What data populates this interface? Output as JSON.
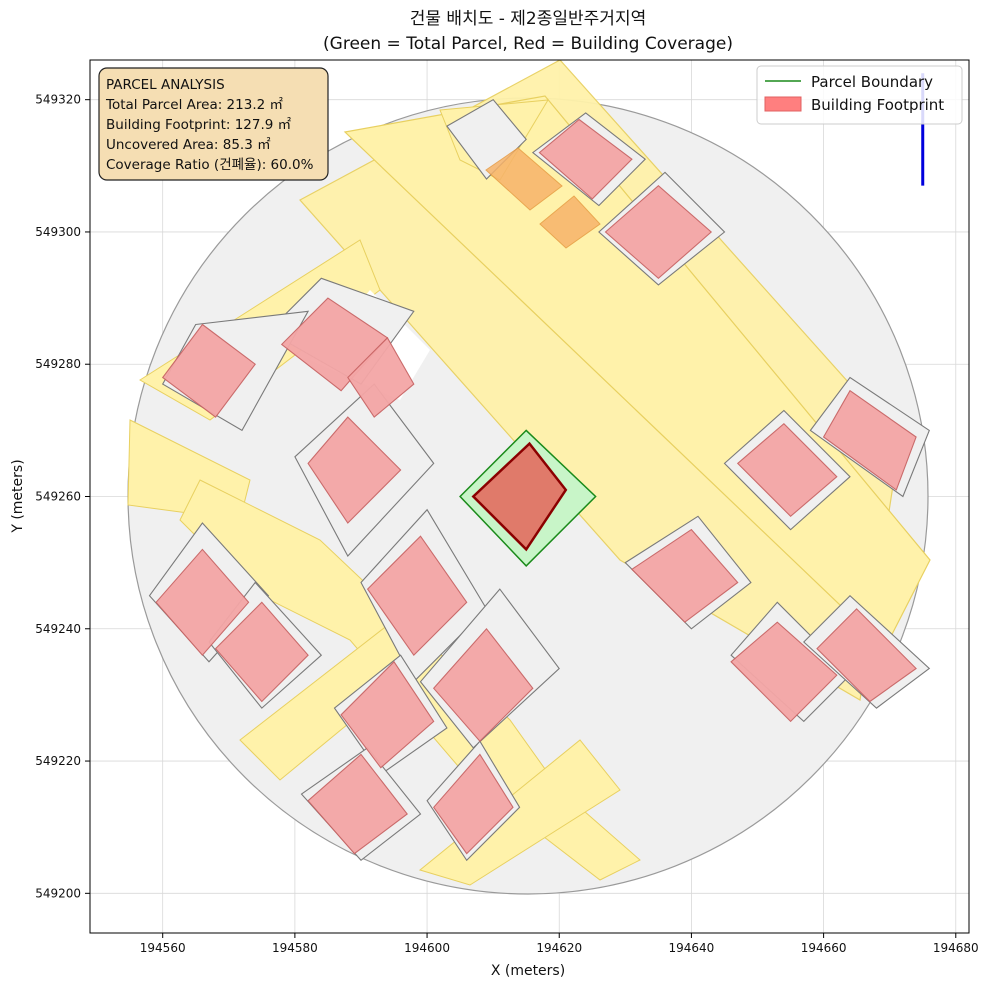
{
  "title": {
    "line1": "건물 배치도 - 제2종일반주거지역",
    "line2": "(Green = Total Parcel, Red = Building Coverage)"
  },
  "axes": {
    "xlabel": "X (meters)",
    "ylabel": "Y (meters)",
    "xlim": [
      194549,
      194682
    ],
    "ylim": [
      549194,
      549326
    ],
    "xticks": [
      194560,
      194580,
      194600,
      194620,
      194640,
      194660,
      194680
    ],
    "yticks": [
      549200,
      549220,
      549240,
      549260,
      549280,
      549300,
      549320
    ],
    "grid": true
  },
  "legend": {
    "placement": "top-right",
    "items": [
      {
        "label": "Parcel Boundary",
        "color": "#1a8a1a",
        "kind": "line"
      },
      {
        "label": "Building Footprint",
        "color": "#ff7f7f",
        "kind": "patch"
      }
    ]
  },
  "info_box": {
    "lines": [
      "PARCEL ANALYSIS",
      "Total Parcel Area: 213.2 ㎡",
      "Building Footprint: 127.9 ㎡",
      "Uncovered Area: 85.3 ㎡",
      "Coverage Ratio (건폐율): 60.0%"
    ]
  },
  "colors": {
    "parcel_fill": "#c8f5c8",
    "parcel_edge": "#1a8a1a",
    "target_building_fill": "#e07a6a",
    "target_building_edge": "#8b0000",
    "context_building_fill": "#f4a6a6",
    "context_building_edge": "#c86464",
    "context_parcel_fill": "#f0f0f0",
    "context_parcel_edge": "#7a7a7a",
    "road_fill": "#fff2aa",
    "road_edge": "#e8d060",
    "north_arrow": "#0000dd",
    "info_box_fill": "#f5deb3"
  },
  "map": {
    "target_parcel": [
      [
        194615,
        549270
      ],
      [
        194625.5,
        549260
      ],
      [
        194615,
        549249.5
      ],
      [
        194605,
        549260
      ]
    ],
    "target_building": [
      [
        194615.5,
        549268
      ],
      [
        194621,
        549261
      ],
      [
        194615,
        549252
      ],
      [
        194607,
        549260
      ]
    ],
    "north_arrow": {
      "x": 194675,
      "y0": 549307,
      "y1": 549324
    },
    "context_parcels": [
      [
        [
          194603,
          549316
        ],
        [
          194610,
          549320
        ],
        [
          194615,
          549314
        ],
        [
          194609,
          549308
        ]
      ],
      [
        [
          194584,
          549293
        ],
        [
          194598,
          549288
        ],
        [
          194590,
          549277
        ],
        [
          194576,
          549285
        ]
      ],
      [
        [
          194565,
          549286
        ],
        [
          194582,
          549288
        ],
        [
          194572,
          549270
        ],
        [
          194560,
          549277
        ]
      ],
      [
        [
          194580,
          549266
        ],
        [
          194592,
          549277
        ],
        [
          194601,
          549265
        ],
        [
          194588,
          549251
        ]
      ],
      [
        [
          194590,
          549247
        ],
        [
          194600,
          549258
        ],
        [
          194609,
          549243
        ],
        [
          194598,
          549232
        ]
      ],
      [
        [
          194599,
          549232
        ],
        [
          194611,
          549246
        ],
        [
          194620,
          549234
        ],
        [
          194607,
          549222
        ]
      ],
      [
        [
          194558,
          549245
        ],
        [
          194566,
          549256
        ],
        [
          194576,
          549245
        ],
        [
          194567,
          549235
        ]
      ],
      [
        [
          194567,
          549238
        ],
        [
          194574,
          549247
        ],
        [
          194584,
          549236
        ],
        [
          194575,
          549228
        ]
      ],
      [
        [
          194586,
          549228
        ],
        [
          194596,
          549236
        ],
        [
          194603,
          549225
        ],
        [
          194593,
          549218
        ]
      ],
      [
        [
          194581,
          549215
        ],
        [
          194591,
          549222
        ],
        [
          194599,
          549212
        ],
        [
          194590,
          549205
        ]
      ],
      [
        [
          194600,
          549214
        ],
        [
          194608,
          549223
        ],
        [
          194614,
          549213
        ],
        [
          194606,
          549205
        ]
      ],
      [
        [
          194630,
          549250
        ],
        [
          194640,
          549240
        ],
        [
          194649,
          549247
        ],
        [
          194641,
          549257
        ]
      ],
      [
        [
          194646,
          549236
        ],
        [
          194657,
          549226
        ],
        [
          194664,
          549233
        ],
        [
          194653,
          549244
        ]
      ],
      [
        [
          194657,
          549238
        ],
        [
          194668,
          549228
        ],
        [
          194676,
          549234
        ],
        [
          194664,
          549245
        ]
      ],
      [
        [
          194645,
          549265
        ],
        [
          194655,
          549255
        ],
        [
          194664,
          549263
        ],
        [
          194654,
          549273
        ]
      ],
      [
        [
          194658,
          549270
        ],
        [
          194672,
          549260
        ],
        [
          194676,
          549270
        ],
        [
          194664,
          549278
        ]
      ],
      [
        [
          194626,
          549300
        ],
        [
          194635,
          549292
        ],
        [
          194645,
          549300
        ],
        [
          194636,
          549309
        ]
      ],
      [
        [
          194616,
          549312
        ],
        [
          194626,
          549304
        ],
        [
          194633,
          549311
        ],
        [
          194624,
          549318
        ]
      ]
    ],
    "context_buildings": [
      [
        [
          194585,
          549290
        ],
        [
          194594,
          549284
        ],
        [
          194587,
          549276
        ],
        [
          194578,
          549283
        ]
      ],
      [
        [
          194566,
          549286
        ],
        [
          194574,
          549280
        ],
        [
          194568,
          549272
        ],
        [
          194560,
          549278
        ]
      ],
      [
        [
          194582,
          549265
        ],
        [
          194588,
          549272
        ],
        [
          194596,
          549264
        ],
        [
          194588,
          549256
        ]
      ],
      [
        [
          194591,
          549246
        ],
        [
          194599,
          549254
        ],
        [
          194606,
          549244
        ],
        [
          194598,
          549236
        ]
      ],
      [
        [
          194601,
          549231
        ],
        [
          194609,
          549240
        ],
        [
          194616,
          549231
        ],
        [
          194608,
          549223
        ]
      ],
      [
        [
          194559,
          549244
        ],
        [
          194566,
          549252
        ],
        [
          194573,
          549244
        ],
        [
          194566,
          549236
        ]
      ],
      [
        [
          194568,
          549237
        ],
        [
          194575,
          549244
        ],
        [
          194582,
          549236
        ],
        [
          194575,
          549229
        ]
      ],
      [
        [
          194587,
          549227
        ],
        [
          194595,
          549235
        ],
        [
          194601,
          549226
        ],
        [
          194593,
          549219
        ]
      ],
      [
        [
          194582,
          549214
        ],
        [
          194590,
          549221
        ],
        [
          194597,
          549212
        ],
        [
          194589,
          549206
        ]
      ],
      [
        [
          194601,
          549213
        ],
        [
          194608,
          549221
        ],
        [
          194613,
          549213
        ],
        [
          194606,
          549206
        ]
      ],
      [
        [
          194631,
          549249
        ],
        [
          194639,
          549241
        ],
        [
          194647,
          549247
        ],
        [
          194640,
          549255
        ]
      ],
      [
        [
          194646,
          549235
        ],
        [
          194655,
          549226
        ],
        [
          194662,
          549233
        ],
        [
          194653,
          549241
        ]
      ],
      [
        [
          194659,
          549237
        ],
        [
          194667,
          549229
        ],
        [
          194674,
          549234
        ],
        [
          194665,
          549243
        ]
      ],
      [
        [
          194647,
          549265
        ],
        [
          194655,
          549257
        ],
        [
          194662,
          549263
        ],
        [
          194654,
          549271
        ]
      ],
      [
        [
          194660,
          549269
        ],
        [
          194671,
          549261
        ],
        [
          194674,
          549269
        ],
        [
          194664,
          549276
        ]
      ],
      [
        [
          194627,
          549300
        ],
        [
          194635,
          549293
        ],
        [
          194643,
          549300
        ],
        [
          194635,
          549307
        ]
      ],
      [
        [
          194617,
          549312
        ],
        [
          194625,
          549305
        ],
        [
          194631,
          549311
        ],
        [
          194623,
          549317
        ]
      ],
      [
        [
          194588,
          549278
        ],
        [
          194594,
          549284
        ],
        [
          194598,
          549277
        ],
        [
          194592,
          549272
        ]
      ]
    ]
  }
}
